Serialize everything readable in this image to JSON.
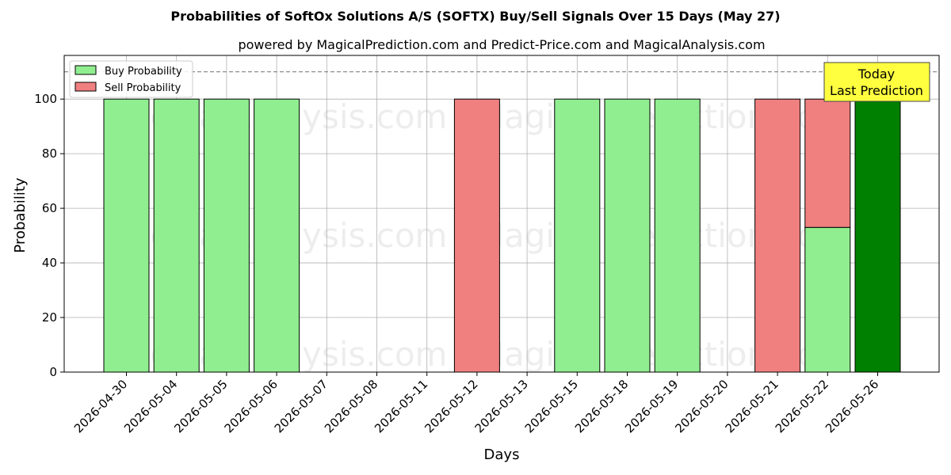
{
  "chart_data": {
    "type": "bar",
    "title": "Probabilities of SoftOx Solutions A/S (SOFTX) Buy/Sell Signals Over 15 Days (May 27)",
    "subtitle": "powered by MagicalPrediction.com and Predict-Price.com and MagicalAnalysis.com",
    "xlabel": "Days",
    "ylabel": "Probability",
    "ylim": [
      0,
      116
    ],
    "yticks": [
      0,
      20,
      40,
      60,
      80,
      100
    ],
    "reference_line": 110,
    "grid": true,
    "legend_position": "top-left",
    "categories": [
      "2026-04-30",
      "2026-05-04",
      "2026-05-05",
      "2026-05-06",
      "2026-05-07",
      "2026-05-08",
      "2026-05-11",
      "2026-05-12",
      "2026-05-13",
      "2026-05-15",
      "2026-05-18",
      "2026-05-19",
      "2026-05-20",
      "2026-05-21",
      "2026-05-22",
      "2026-05-26"
    ],
    "series": [
      {
        "name": "Buy Probability",
        "color": "#90ee90",
        "values": [
          100,
          100,
          100,
          100,
          0,
          0,
          0,
          0,
          0,
          100,
          100,
          100,
          0,
          0,
          53,
          100
        ]
      },
      {
        "name": "Sell Probability",
        "color": "#f08080",
        "values": [
          0,
          0,
          0,
          0,
          0,
          0,
          0,
          100,
          0,
          0,
          0,
          0,
          0,
          100,
          47,
          0
        ]
      }
    ],
    "highlight": {
      "category": "2026-05-26",
      "color": "#008000"
    },
    "annotation": {
      "lines": [
        "Today",
        "Last Prediction"
      ],
      "bg_color": "#ffff40"
    },
    "watermarks": [
      "MagicalAnalysis.com",
      "MagicalPrediction.com"
    ]
  }
}
